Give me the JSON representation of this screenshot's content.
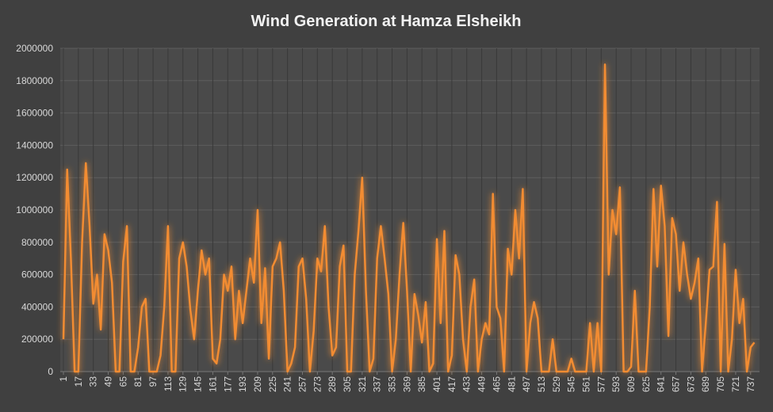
{
  "chart_data": {
    "type": "line",
    "title": "Wind Generation at Hamza Elsheikh",
    "color": "#f28c32",
    "grid": true,
    "x": [
      1,
      5,
      9,
      13,
      17,
      21,
      25,
      29,
      33,
      37,
      41,
      45,
      49,
      53,
      57,
      61,
      65,
      69,
      73,
      77,
      81,
      85,
      89,
      93,
      97,
      101,
      105,
      109,
      113,
      117,
      121,
      125,
      129,
      133,
      137,
      141,
      145,
      149,
      153,
      157,
      161,
      165,
      169,
      173,
      177,
      181,
      185,
      189,
      193,
      197,
      201,
      205,
      209,
      213,
      217,
      221,
      225,
      229,
      233,
      237,
      241,
      245,
      249,
      253,
      257,
      261,
      265,
      269,
      273,
      277,
      281,
      285,
      289,
      293,
      297,
      301,
      305,
      309,
      313,
      317,
      321,
      325,
      329,
      333,
      337,
      341,
      345,
      349,
      353,
      357,
      361,
      365,
      369,
      373,
      377,
      381,
      385,
      389,
      393,
      397,
      401,
      405,
      409,
      413,
      417,
      421,
      425,
      429,
      433,
      437,
      441,
      445,
      449,
      453,
      457,
      461,
      465,
      469,
      473,
      477,
      481,
      485,
      489,
      493,
      497,
      501,
      505,
      509,
      513,
      517,
      521,
      525,
      529,
      533,
      537,
      541,
      545,
      549,
      553,
      557,
      561,
      565,
      569,
      573,
      577,
      581,
      585,
      589,
      593,
      597,
      601,
      605,
      609,
      613,
      617,
      621,
      625,
      629,
      633,
      637,
      641,
      645,
      649,
      653,
      657,
      661,
      665,
      669,
      673,
      677,
      681,
      685,
      689,
      693,
      697,
      701,
      705,
      709,
      713,
      717,
      721,
      725,
      729,
      733,
      737,
      741
    ],
    "values": [
      200000,
      1250000,
      700000,
      0,
      0,
      800000,
      1290000,
      900000,
      420000,
      600000,
      260000,
      850000,
      750000,
      550000,
      0,
      0,
      680000,
      900000,
      0,
      0,
      150000,
      400000,
      450000,
      0,
      0,
      0,
      100000,
      400000,
      900000,
      0,
      0,
      700000,
      800000,
      650000,
      380000,
      200000,
      500000,
      750000,
      600000,
      700000,
      80000,
      50000,
      200000,
      600000,
      500000,
      650000,
      200000,
      500000,
      300000,
      500000,
      700000,
      550000,
      1000000,
      300000,
      640000,
      80000,
      650000,
      700000,
      800000,
      500000,
      0,
      50000,
      150000,
      650000,
      700000,
      450000,
      0,
      250000,
      700000,
      620000,
      900000,
      400000,
      100000,
      150000,
      650000,
      780000,
      0,
      0,
      600000,
      870000,
      1200000,
      500000,
      0,
      80000,
      700000,
      900000,
      700000,
      480000,
      0,
      200000,
      600000,
      920000,
      500000,
      0,
      480000,
      350000,
      180000,
      430000,
      0,
      50000,
      820000,
      300000,
      870000,
      0,
      100000,
      720000,
      600000,
      200000,
      0,
      400000,
      570000,
      0,
      200000,
      300000,
      230000,
      1100000,
      400000,
      330000,
      0,
      760000,
      600000,
      1000000,
      700000,
      1130000,
      0,
      300000,
      430000,
      330000,
      0,
      0,
      0,
      200000,
      0,
      0,
      0,
      0,
      80000,
      0,
      0,
      0,
      0,
      300000,
      0,
      300000,
      0,
      1900000,
      600000,
      1000000,
      850000,
      1140000,
      0,
      0,
      30000,
      500000,
      0,
      0,
      0,
      400000,
      1130000,
      650000,
      1150000,
      900000,
      220000,
      950000,
      850000,
      500000,
      800000,
      600000,
      450000,
      550000,
      700000,
      0,
      300000,
      630000,
      650000,
      1050000,
      0,
      790000,
      0,
      200000,
      630000,
      300000,
      450000,
      0,
      150000,
      180000
    ],
    "xlim": [
      1,
      744
    ],
    "xticks": [
      1,
      17,
      33,
      49,
      65,
      81,
      97,
      113,
      129,
      145,
      161,
      177,
      193,
      209,
      225,
      241,
      257,
      273,
      289,
      305,
      321,
      337,
      353,
      369,
      385,
      401,
      417,
      433,
      449,
      465,
      481,
      497,
      513,
      529,
      545,
      561,
      577,
      593,
      609,
      625,
      641,
      657,
      673,
      689,
      705,
      721,
      737
    ],
    "ylim": [
      0,
      2000000
    ],
    "yticks": [
      0,
      200000,
      400000,
      600000,
      800000,
      1000000,
      1200000,
      1400000,
      1600000,
      1800000,
      2000000
    ]
  }
}
